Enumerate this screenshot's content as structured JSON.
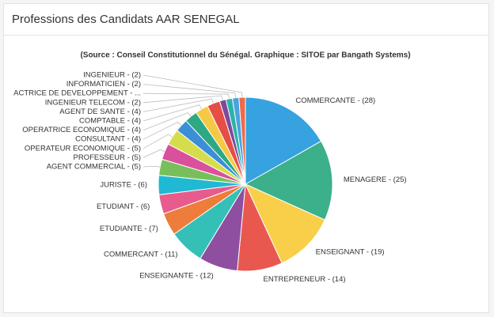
{
  "chart_data": {
    "type": "pie",
    "title": "Professions des Candidats AAR SENEGAL",
    "subtitle": "(Source : Conseil Constitutionnel du Sénégal. Graphique : SITOE par Bangath Systems)",
    "categories": [
      "COMMERCANTE - (28)",
      "MENAGERE - (25)",
      "ENSEIGNANT - (19)",
      "ENTREPRENEUR - (14)",
      "ENSEIGNANTE - (12)",
      "COMMERCANT - (11)",
      "ETUDIANTE - (7)",
      "ETUDIANT - (6)",
      "JURISTE - (6)",
      "AGENT COMMERCIAL - (5)",
      "PROFESSEUR - (5)",
      "OPERATEUR ECONOMIQUE - (5)",
      "CONSULTANT - (4)",
      "OPERATRICE ECONOMIQUE - (4)",
      "COMPTABLE - (4)",
      "AGENT DE SANTE - (4)",
      "INGENIEUR TELECOM - (2)",
      "ACTRICE DE DEVELOPPEMENT - ...",
      "INFORMATICIEN - (2)",
      "INGENIEUR - (2)"
    ],
    "values": [
      28,
      25,
      19,
      14,
      12,
      11,
      7,
      6,
      6,
      5,
      5,
      5,
      4,
      4,
      4,
      4,
      2,
      2,
      2,
      2
    ],
    "colors": [
      "#36a2e0",
      "#3bb08a",
      "#f9cf4a",
      "#e9584f",
      "#8e4fa0",
      "#34c0b6",
      "#ee7c3a",
      "#e75b8d",
      "#20b9d3",
      "#78bf5b",
      "#d9509c",
      "#d6dd4c",
      "#3a8fd6",
      "#2ea883",
      "#f5c945",
      "#e54e45",
      "#7e4a9c",
      "#2ab3a8",
      "#4aa3df",
      "#ee6b4a"
    ]
  }
}
